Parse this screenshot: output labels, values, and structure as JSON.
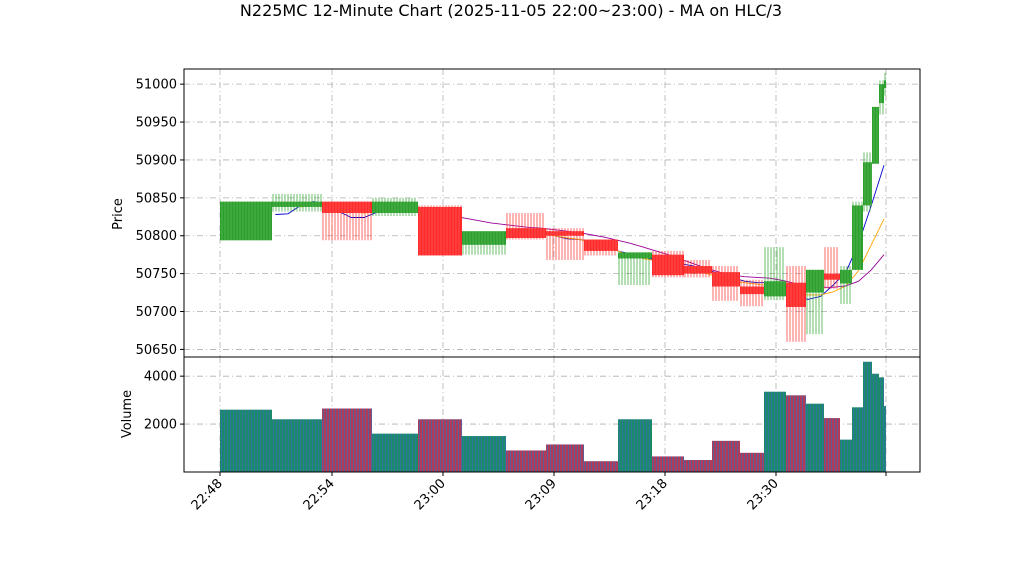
{
  "chart_data": {
    "type": "candlestick",
    "title": "N225MC 12-Minute Chart (2025-11-05 22:00~23:00) - MA on HLC/3",
    "price_panel": {
      "ylabel": "Price",
      "ylim": [
        50640,
        51020
      ],
      "yticks": [
        50650,
        50700,
        50750,
        50800,
        50850,
        50900,
        50950,
        51000
      ],
      "grid": true
    },
    "volume_panel": {
      "ylabel": "Volume",
      "ylim": [
        0,
        4800
      ],
      "yticks": [
        2000,
        4000
      ],
      "grid": true
    },
    "xtick_labels": [
      "22:48",
      "22:54",
      "23:00",
      "23:09",
      "23:18",
      "23:30",
      ""
    ],
    "up_color": "#2ca02c",
    "down_color": "#ff2a2a",
    "volume_color": "#1f9090",
    "ma_colors": [
      "#0000cc",
      "#ffa500",
      "#990099"
    ],
    "candles": [
      {
        "o": 50794,
        "h": 50845,
        "l": 50794,
        "c": 50845,
        "v": 2600,
        "dir": "up"
      },
      {
        "o": 50838,
        "h": 50855,
        "l": 50832,
        "c": 50845,
        "v": 2200,
        "dir": "up"
      },
      {
        "o": 50845,
        "h": 50845,
        "l": 50794,
        "c": 50830,
        "v": 2650,
        "dir": "down"
      },
      {
        "o": 50830,
        "h": 50850,
        "l": 50826,
        "c": 50845,
        "v": 1600,
        "dir": "up"
      },
      {
        "o": 50838,
        "h": 50840,
        "l": 50774,
        "c": 50774,
        "v": 2200,
        "dir": "down"
      },
      {
        "o": 50788,
        "h": 50806,
        "l": 50775,
        "c": 50806,
        "v": 1500,
        "dir": "up"
      },
      {
        "o": 50810,
        "h": 50830,
        "l": 50795,
        "c": 50797,
        "v": 900,
        "dir": "down"
      },
      {
        "o": 50806,
        "h": 50810,
        "l": 50768,
        "c": 50800,
        "v": 1150,
        "dir": "down"
      },
      {
        "o": 50795,
        "h": 50795,
        "l": 50774,
        "c": 50780,
        "v": 450,
        "dir": "down"
      },
      {
        "o": 50770,
        "h": 50778,
        "l": 50735,
        "c": 50778,
        "v": 2200,
        "dir": "up"
      },
      {
        "o": 50775,
        "h": 50780,
        "l": 50745,
        "c": 50748,
        "v": 650,
        "dir": "down"
      },
      {
        "o": 50760,
        "h": 50768,
        "l": 50745,
        "c": 50750,
        "v": 500,
        "dir": "down"
      },
      {
        "o": 50752,
        "h": 50760,
        "l": 50714,
        "c": 50733,
        "v": 1300,
        "dir": "down"
      },
      {
        "o": 50733,
        "h": 50742,
        "l": 50707,
        "c": 50723,
        "v": 800,
        "dir": "down"
      },
      {
        "o": 50720,
        "h": 50785,
        "l": 50715,
        "c": 50740,
        "v": 3350,
        "dir": "up"
      },
      {
        "o": 50738,
        "h": 50760,
        "l": 50660,
        "c": 50706,
        "v": 3200,
        "dir": "down"
      },
      {
        "o": 50725,
        "h": 50755,
        "l": 50670,
        "c": 50755,
        "v": 2850,
        "dir": "up"
      },
      {
        "o": 50750,
        "h": 50785,
        "l": 50730,
        "c": 50742,
        "v": 2250,
        "dir": "down"
      },
      {
        "o": 50737,
        "h": 50760,
        "l": 50710,
        "c": 50755,
        "v": 1350,
        "dir": "up"
      },
      {
        "o": 50755,
        "h": 50845,
        "l": 50755,
        "c": 50840,
        "v": 2700,
        "dir": "up"
      },
      {
        "o": 50840,
        "h": 50910,
        "l": 50832,
        "c": 50897,
        "v": 4600,
        "dir": "up"
      },
      {
        "o": 50895,
        "h": 50970,
        "l": 50895,
        "c": 50970,
        "v": 4100,
        "dir": "up"
      },
      {
        "o": 50975,
        "h": 51005,
        "l": 50960,
        "c": 51000,
        "v": 3950,
        "dir": "up"
      },
      {
        "o": 50995,
        "h": 51015,
        "l": 50985,
        "c": 51005,
        "v": 2750,
        "dir": "up"
      }
    ],
    "ma_series": [
      {
        "values": [
          null,
          null,
          50828,
          50829,
          50840,
          50845,
          50842,
          50832,
          50824,
          50824,
          50831,
          50838,
          50841,
          50838,
          50822,
          50805,
          50796,
          50796,
          50797,
          50798,
          50803,
          50806,
          50807,
          50804,
          50800,
          50796,
          50795,
          50792,
          50787,
          50780,
          50776,
          50772,
          50768,
          50765,
          50763,
          50760,
          50755,
          50750,
          50745,
          50740,
          50738,
          50738,
          50730,
          50722,
          50716,
          50720,
          50735,
          50752,
          50790,
          50840,
          50893
        ]
      },
      {
        "values": [
          null,
          null,
          null,
          null,
          50838,
          50840,
          50838,
          50836,
          50832,
          50830,
          50832,
          50834,
          50836,
          50834,
          50826,
          50815,
          50806,
          50801,
          50799,
          50799,
          50801,
          50803,
          50804,
          50803,
          50800,
          50797,
          50795,
          50791,
          50786,
          50780,
          50774,
          50770,
          50767,
          50764,
          50760,
          50756,
          50750,
          50745,
          50741,
          50738,
          50736,
          50734,
          50730,
          50725,
          50722,
          50722,
          50726,
          50734,
          50754,
          50788,
          50822
        ]
      },
      {
        "values": [
          null,
          null,
          null,
          null,
          null,
          null,
          null,
          null,
          null,
          null,
          null,
          null,
          50837,
          50835,
          50832,
          50829,
          50826,
          50823,
          50820,
          50817,
          50815,
          50813,
          50811,
          50810,
          50808,
          50806,
          50804,
          50801,
          50798,
          50794,
          50790,
          50785,
          50780,
          50775,
          50769,
          50763,
          50757,
          50752,
          50748,
          50746,
          50745,
          50744,
          50741,
          50737,
          50734,
          50732,
          50732,
          50734,
          50740,
          50755,
          50775
        ]
      }
    ]
  }
}
